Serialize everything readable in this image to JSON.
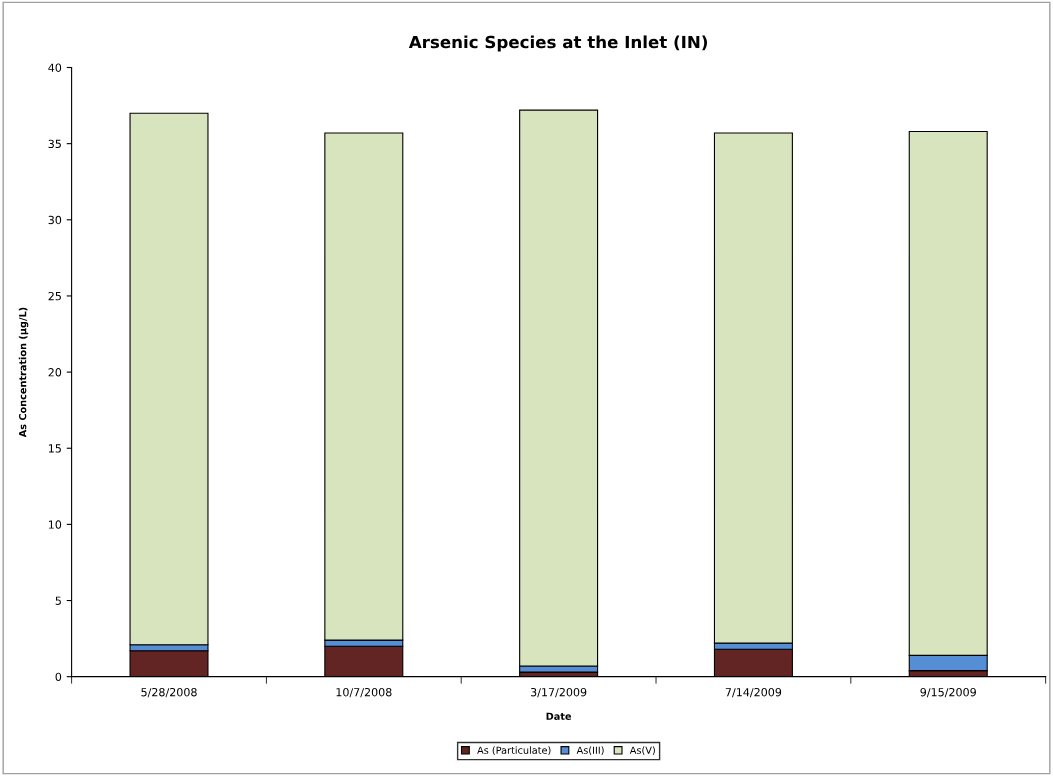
{
  "chart_data": {
    "type": "bar",
    "stacked": true,
    "title": "Arsenic Species at the Inlet (IN)",
    "xlabel": "Date",
    "ylabel": "As Concentration (µg/L)",
    "categories": [
      "5/28/2008",
      "10/7/2008",
      "3/17/2009",
      "7/14/2009",
      "9/15/2009"
    ],
    "series": [
      {
        "name": "As (Particulate)",
        "color": "#632523",
        "values": [
          1.7,
          2.0,
          0.3,
          1.8,
          0.4
        ]
      },
      {
        "name": "As(III)",
        "color": "#558ed5",
        "values": [
          0.4,
          0.4,
          0.4,
          0.4,
          1.0
        ]
      },
      {
        "name": "As(V)",
        "color": "#d7e4bd",
        "values": [
          34.9,
          33.3,
          36.5,
          33.5,
          34.4
        ]
      }
    ],
    "ylim": [
      0,
      40
    ],
    "yticks": [
      0,
      5,
      10,
      15,
      20,
      25,
      30,
      35,
      40
    ],
    "grid": false,
    "legend": "bottom"
  }
}
